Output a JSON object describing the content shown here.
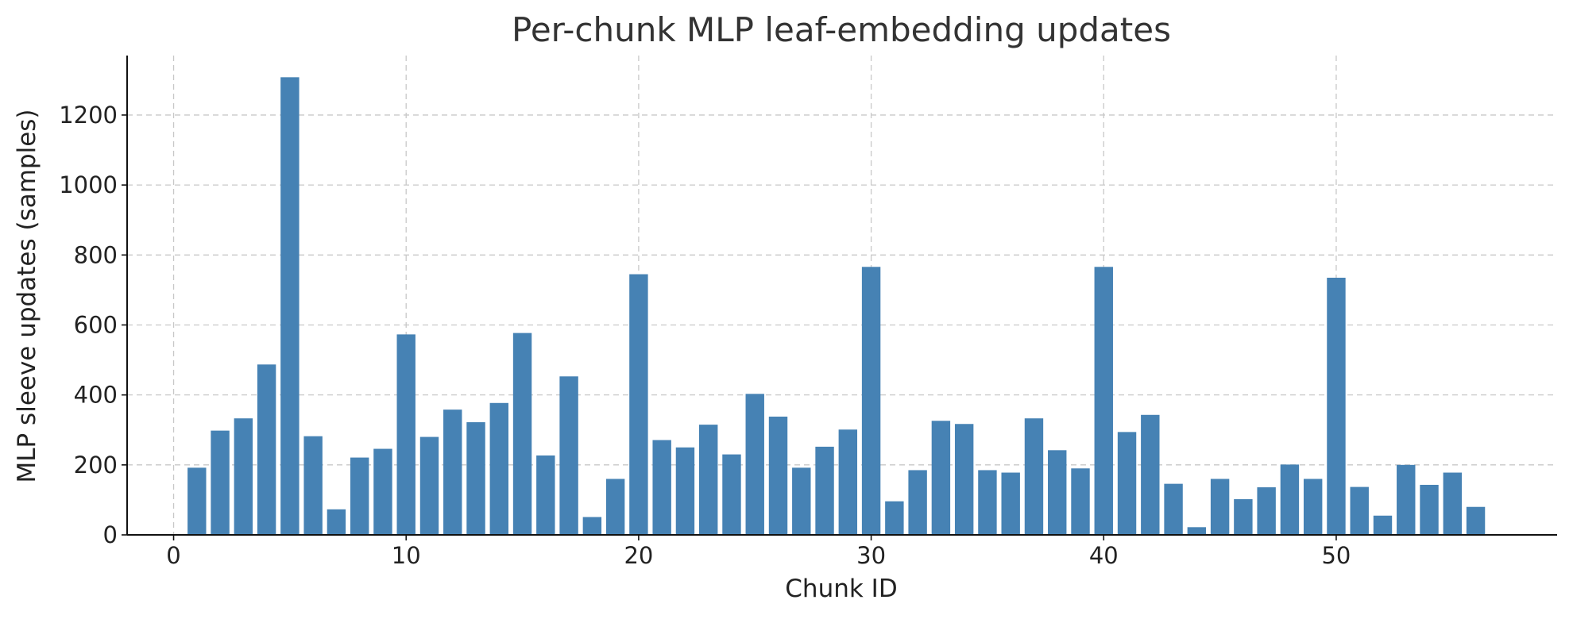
{
  "chart_data": {
    "type": "bar",
    "title": "Per-chunk MLP leaf-embedding updates",
    "xlabel": "Chunk ID",
    "ylabel": "MLP sleeve updates (samples)",
    "xlim": [
      -2,
      59.5
    ],
    "ylim": [
      0,
      1370
    ],
    "x_ticks": [
      0,
      10,
      20,
      30,
      40,
      50
    ],
    "y_ticks": [
      0,
      200,
      400,
      600,
      800,
      1000,
      1200
    ],
    "grid": true,
    "bar_color": "#4682b4",
    "x": [
      1,
      2,
      3,
      4,
      5,
      6,
      7,
      8,
      9,
      10,
      11,
      12,
      13,
      14,
      15,
      16,
      17,
      18,
      19,
      20,
      21,
      22,
      23,
      24,
      25,
      26,
      27,
      28,
      29,
      30,
      31,
      32,
      33,
      34,
      35,
      36,
      37,
      38,
      39,
      40,
      41,
      42,
      43,
      44,
      45,
      46,
      47,
      48,
      49,
      50,
      51,
      52,
      53,
      54,
      55,
      56
    ],
    "values": [
      192,
      298,
      333,
      487,
      1308,
      282,
      73,
      221,
      246,
      573,
      280,
      358,
      322,
      377,
      577,
      227,
      453,
      51,
      160,
      745,
      271,
      250,
      315,
      230,
      403,
      338,
      192,
      252,
      301,
      766,
      96,
      185,
      326,
      317,
      185,
      178,
      333,
      242,
      190,
      766,
      294,
      343,
      146,
      22,
      160,
      102,
      136,
      201,
      160,
      735,
      137,
      55,
      200,
      143,
      178,
      80
    ]
  }
}
